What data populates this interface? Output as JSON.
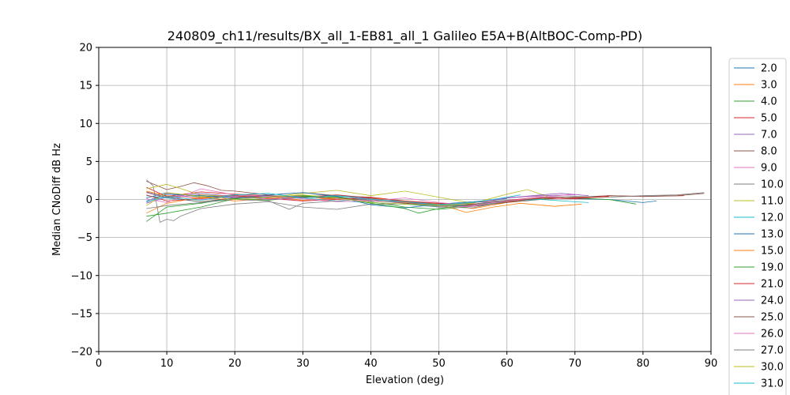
{
  "chart_data": {
    "type": "line",
    "title": "240809_ch11/results/BX_all_1-EB81_all_1 Galileo E5A+B(AltBOC-Comp-PD)",
    "xlabel": "Elevation (deg)",
    "ylabel": "Median CNoDiff dB Hz",
    "xlim": [
      0,
      90
    ],
    "ylim": [
      -20,
      20
    ],
    "xticks": [
      0,
      10,
      20,
      30,
      40,
      50,
      60,
      70,
      80,
      90
    ],
    "yticks": [
      -20,
      -15,
      -10,
      -5,
      0,
      5,
      10,
      15,
      20
    ],
    "grid": true,
    "legend_position": "right, outside plot",
    "series": [
      {
        "name": "2.0",
        "color": "#1f77b4",
        "x": [
          7,
          10,
          15,
          20,
          25,
          30,
          35,
          40,
          45,
          50,
          55,
          60,
          65,
          70,
          75,
          80,
          82
        ],
        "y": [
          0.2,
          0.9,
          0.3,
          0.6,
          0.3,
          0.5,
          0.1,
          0.2,
          -0.5,
          -0.8,
          -0.9,
          -0.3,
          0.2,
          0.1,
          0.0,
          -0.4,
          -0.2
        ]
      },
      {
        "name": "3.0",
        "color": "#ff7f0e",
        "x": [
          7,
          10,
          15,
          20,
          25,
          30,
          35,
          40,
          45,
          50,
          55,
          60,
          65,
          70,
          75
        ],
        "y": [
          1.1,
          0.5,
          0.2,
          0.6,
          0.4,
          -0.1,
          0.2,
          0.1,
          -0.2,
          -0.6,
          -1.2,
          -0.4,
          0.3,
          0.2,
          0.5
        ]
      },
      {
        "name": "4.0",
        "color": "#2ca02c",
        "x": [
          7,
          10,
          15,
          20,
          25,
          30,
          35,
          40,
          45,
          50,
          55,
          60,
          65,
          70,
          75,
          79
        ],
        "y": [
          -2.9,
          -1.0,
          -0.5,
          0.2,
          0.3,
          0.5,
          0.4,
          -0.3,
          -1.0,
          -1.3,
          -0.9,
          -0.3,
          0.1,
          0.2,
          0.0,
          -0.6
        ]
      },
      {
        "name": "5.0",
        "color": "#d62728",
        "x": [
          7,
          10,
          15,
          20,
          25,
          30,
          35,
          40,
          45,
          50,
          55,
          60,
          65,
          70,
          75,
          80,
          86
        ],
        "y": [
          1.6,
          0.4,
          1.0,
          0.7,
          0.5,
          0.3,
          0.6,
          0.2,
          -0.4,
          -0.6,
          -0.8,
          -0.1,
          0.3,
          0.2,
          0.5,
          0.4,
          0.5
        ]
      },
      {
        "name": "7.0",
        "color": "#9467bd",
        "x": [
          7,
          10,
          15,
          20,
          25,
          30,
          35,
          40,
          45,
          50,
          55,
          60,
          65,
          70
        ],
        "y": [
          0.9,
          0.2,
          0.6,
          0.3,
          0.5,
          0.4,
          0.2,
          0.0,
          -0.3,
          -0.5,
          -0.7,
          0.2,
          0.5,
          0.6
        ]
      },
      {
        "name": "8.0",
        "color": "#8c564b",
        "x": [
          7,
          10,
          12,
          14,
          16,
          18,
          20,
          25,
          30,
          35,
          40,
          45,
          50,
          55,
          60,
          65,
          70,
          75,
          80,
          85,
          89
        ],
        "y": [
          2.4,
          1.3,
          1.7,
          2.2,
          1.8,
          1.2,
          1.1,
          0.6,
          0.9,
          0.5,
          0.3,
          -0.3,
          -0.6,
          -0.9,
          -0.4,
          0.0,
          0.3,
          0.5,
          0.4,
          0.5,
          0.8
        ]
      },
      {
        "name": "9.0",
        "color": "#e377c2",
        "x": [
          7,
          10,
          15,
          20,
          25,
          30,
          35,
          40,
          45,
          50,
          55,
          60,
          65,
          68
        ],
        "y": [
          -0.4,
          0.8,
          0.0,
          0.3,
          0.1,
          -0.2,
          0.1,
          -0.2,
          -0.4,
          -1.0,
          -0.9,
          0.3,
          0.4,
          0.2
        ]
      },
      {
        "name": "10.0",
        "color": "#7f7f7f",
        "x": [
          7,
          8,
          9,
          10,
          11,
          12,
          15,
          20,
          25,
          30,
          35,
          40,
          45,
          50,
          55,
          60,
          65,
          70,
          75,
          80,
          85,
          89
        ],
        "y": [
          2.6,
          1.8,
          -3.0,
          -2.6,
          -2.8,
          -2.2,
          -1.2,
          -0.6,
          -0.3,
          -1.0,
          -1.3,
          -0.6,
          -0.6,
          -1.0,
          -1.1,
          -0.2,
          0.3,
          0.4,
          0.3,
          0.5,
          0.6,
          0.9
        ]
      },
      {
        "name": "11.0",
        "color": "#bcbd22",
        "x": [
          7,
          10,
          15,
          20,
          25,
          30,
          35,
          40,
          45,
          50,
          55,
          60,
          63,
          66
        ],
        "y": [
          1.4,
          2.0,
          0.6,
          0.4,
          0.3,
          0.8,
          1.2,
          0.5,
          1.1,
          0.3,
          -0.5,
          0.7,
          1.3,
          0.4
        ]
      },
      {
        "name": "12.0",
        "color": "#17becf",
        "x": [
          7,
          10,
          15,
          20,
          25,
          30,
          35,
          40,
          45,
          50,
          55,
          60,
          65,
          70,
          72
        ],
        "y": [
          0.5,
          0.2,
          -0.3,
          0.1,
          0.4,
          0.2,
          -0.2,
          -0.4,
          -0.6,
          -0.9,
          -0.6,
          -0.2,
          0.0,
          -0.3,
          -0.4
        ]
      },
      {
        "name": "13.0",
        "color": "#1f77b4",
        "x": [
          7,
          10,
          15,
          20,
          25,
          30,
          35,
          40,
          45,
          50,
          55,
          60
        ],
        "y": [
          -0.2,
          0.7,
          0.5,
          0.2,
          0.6,
          0.9,
          0.4,
          -0.7,
          -1.1,
          -0.6,
          -0.3,
          0.1
        ]
      },
      {
        "name": "15.0",
        "color": "#ff7f0e",
        "x": [
          7,
          10,
          15,
          20,
          25,
          30,
          35,
          40,
          45,
          50,
          54,
          58,
          62,
          67,
          71
        ],
        "y": [
          -1.8,
          -0.5,
          0.3,
          -0.2,
          0.1,
          0.4,
          0.0,
          0.3,
          -0.4,
          -0.6,
          -1.7,
          -1.0,
          -0.5,
          -0.9,
          -0.6
        ]
      },
      {
        "name": "19.0",
        "color": "#2ca02c",
        "x": [
          7,
          10,
          15,
          20,
          25,
          30,
          35,
          40,
          45,
          47,
          50,
          55
        ],
        "y": [
          -2.2,
          -1.8,
          -1.0,
          0.1,
          -0.1,
          0.4,
          0.3,
          -0.5,
          -1.2,
          -1.8,
          -1.2,
          -0.6
        ]
      },
      {
        "name": "21.0",
        "color": "#d62728",
        "x": [
          7,
          10,
          15,
          20,
          25,
          30,
          35,
          40,
          45,
          50,
          55,
          60,
          65,
          70,
          75
        ],
        "y": [
          0.6,
          -0.2,
          0.1,
          0.5,
          0.2,
          -0.2,
          0.0,
          0.3,
          -0.2,
          -0.5,
          -0.6,
          -0.3,
          0.2,
          0.1,
          0.4
        ]
      },
      {
        "name": "24.0",
        "color": "#9467bd",
        "x": [
          7,
          10,
          15,
          20,
          25,
          30,
          35,
          40,
          45,
          50,
          55,
          60,
          65,
          68,
          72
        ],
        "y": [
          -0.5,
          0.3,
          0.8,
          0.4,
          0.0,
          0.2,
          0.5,
          0.1,
          -0.3,
          -0.8,
          -0.4,
          0.2,
          0.6,
          0.8,
          0.5
        ]
      },
      {
        "name": "25.0",
        "color": "#8c564b",
        "x": [
          7,
          10,
          15,
          20,
          25,
          30,
          35,
          40,
          45,
          50,
          55,
          60,
          65
        ],
        "y": [
          1.0,
          0.3,
          -0.3,
          0.2,
          0.5,
          0.3,
          0.2,
          -0.1,
          -0.5,
          -0.7,
          -0.4,
          -0.1,
          0.1
        ]
      },
      {
        "name": "26.0",
        "color": "#e377c2",
        "x": [
          7,
          10,
          15,
          20,
          25,
          30,
          35,
          40,
          45,
          50,
          55,
          60,
          65,
          70
        ],
        "y": [
          0.1,
          -0.4,
          1.4,
          0.6,
          0.4,
          0.1,
          -0.3,
          -0.2,
          0.2,
          -0.4,
          -0.8,
          -0.2,
          0.3,
          0.7
        ]
      },
      {
        "name": "27.0",
        "color": "#7f7f7f",
        "x": [
          7,
          10,
          15,
          20,
          25,
          28,
          30,
          35,
          40,
          45,
          50,
          55,
          60
        ],
        "y": [
          -1.2,
          -0.8,
          -0.4,
          0.0,
          -0.2,
          -1.3,
          -0.5,
          -0.2,
          0.1,
          -0.3,
          -0.9,
          -0.7,
          -0.1
        ]
      },
      {
        "name": "30.0",
        "color": "#bcbd22",
        "x": [
          7,
          10,
          15,
          20,
          25,
          30,
          35,
          40,
          45,
          50,
          55
        ],
        "y": [
          -0.8,
          0.9,
          0.4,
          0.0,
          0.3,
          0.6,
          0.2,
          -0.4,
          -0.6,
          -0.8,
          -0.5
        ]
      },
      {
        "name": "31.0",
        "color": "#17becf",
        "x": [
          7,
          10,
          15,
          20,
          25,
          30,
          35,
          40,
          45,
          50,
          55,
          60,
          62
        ],
        "y": [
          -0.3,
          0.4,
          -0.1,
          0.6,
          0.8,
          0.2,
          0.5,
          0.0,
          -0.3,
          -0.7,
          -0.4,
          0.3,
          0.6
        ]
      }
    ]
  }
}
